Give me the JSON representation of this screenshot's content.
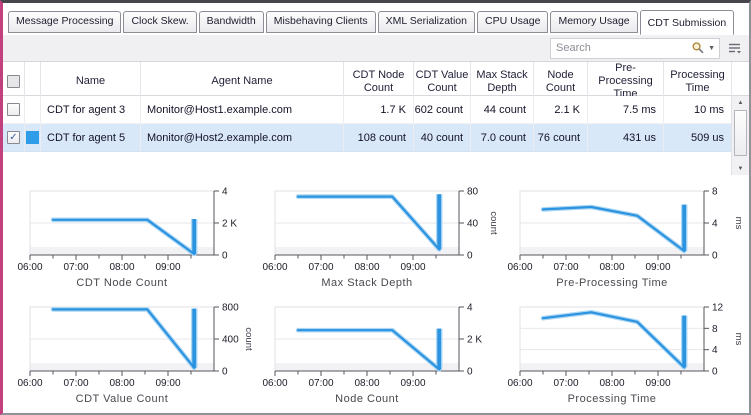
{
  "icons": {
    "scroll_up": "▲",
    "scroll_down": "▼",
    "caret_down": "▼",
    "check": "✓"
  },
  "colors": {
    "chart_line": "#2b93e0",
    "chart_line_halo": "#abd6f4",
    "selection_row": "#d9e8f9",
    "series_swatch": "#2e9ce8",
    "frame_left_accent": "#c2407e"
  },
  "tabs": [
    {
      "label": "Message Processing",
      "active": false
    },
    {
      "label": "Clock Skew.",
      "active": false
    },
    {
      "label": "Bandwidth",
      "active": false
    },
    {
      "label": "Misbehaving Clients",
      "active": false
    },
    {
      "label": "XML Serialization",
      "active": false
    },
    {
      "label": "CPU Usage",
      "active": false
    },
    {
      "label": "Memory Usage",
      "active": false
    },
    {
      "label": "CDT Submission",
      "active": true
    }
  ],
  "toolbar": {
    "search_placeholder": "Search"
  },
  "table": {
    "headers": [
      "Name",
      "Agent Name",
      "CDT Node Count",
      "CDT Value Count",
      "Max Stack Depth",
      "Node Count",
      "Pre-Processing Time",
      "Processing Time"
    ],
    "rows": [
      {
        "checked": false,
        "selected": false,
        "swatch": null,
        "name": "CDT for agent 3",
        "agent_name": "Monitor@Host1.example.com",
        "values": [
          "1.7 K",
          "602 count",
          "44 count",
          "2.1 K",
          "7.5 ms",
          "10 ms"
        ]
      },
      {
        "checked": true,
        "selected": true,
        "swatch": "#2e9ce8",
        "name": "CDT for agent 5",
        "agent_name": "Monitor@Host2.example.com",
        "values": [
          "108 count",
          "40 count",
          "7.0 count",
          "76 count",
          "431 us",
          "509 us"
        ]
      }
    ]
  },
  "chart_data": {
    "type": "line",
    "layout": "2 rows x 3 columns",
    "legend": "none",
    "grid": "horizontal gridlines at y ticks, light bottom band",
    "x_axis": {
      "tick_labels": [
        "06:00",
        "07:00",
        "08:00",
        "09:00"
      ],
      "tick_hours": [
        6,
        7,
        8,
        9
      ],
      "range_hours": [
        6,
        10
      ],
      "minor_step": 0.5
    },
    "charts": [
      {
        "title": "CDT Node Count",
        "unit": "",
        "value_scale": "thousands",
        "ylim": [
          0,
          4
        ],
        "yticks": [
          {
            "v": 0,
            "t": "0"
          },
          {
            "v": 2,
            "t": "2 K"
          },
          {
            "v": 4,
            "t": "4"
          }
        ],
        "points": [
          [
            6.5,
            2.2
          ],
          [
            7.5,
            2.2
          ],
          [
            8.55,
            2.2
          ],
          [
            9.57,
            0.06
          ]
        ],
        "spike": 2.25
      },
      {
        "title": "Max Stack Depth",
        "unit": "count",
        "ylim": [
          0,
          80
        ],
        "yticks": [
          {
            "v": 0,
            "t": "0"
          },
          {
            "v": 40,
            "t": "40"
          },
          {
            "v": 80,
            "t": "80"
          }
        ],
        "points": [
          [
            6.5,
            73
          ],
          [
            7.5,
            73
          ],
          [
            8.55,
            73
          ],
          [
            9.57,
            7
          ]
        ],
        "spike": 76
      },
      {
        "title": "Pre-Processing Time",
        "unit": "ms",
        "ylim": [
          0,
          8
        ],
        "yticks": [
          {
            "v": 0,
            "t": "0"
          },
          {
            "v": 4,
            "t": "4"
          },
          {
            "v": 8,
            "t": "8"
          }
        ],
        "points": [
          [
            6.5,
            5.7
          ],
          [
            7.55,
            6.0
          ],
          [
            8.55,
            4.9
          ],
          [
            9.57,
            0.5
          ]
        ],
        "spike": 6.3
      },
      {
        "title": "CDT Value Count",
        "unit": "count",
        "ylim": [
          0,
          800
        ],
        "yticks": [
          {
            "v": 0,
            "t": "0"
          },
          {
            "v": 400,
            "t": "400"
          },
          {
            "v": 800,
            "t": "800"
          }
        ],
        "points": [
          [
            6.5,
            770
          ],
          [
            7.5,
            770
          ],
          [
            8.55,
            770
          ],
          [
            9.57,
            40
          ]
        ],
        "spike": 780
      },
      {
        "title": "Node Count",
        "unit": "",
        "value_scale": "thousands",
        "ylim": [
          0,
          4
        ],
        "yticks": [
          {
            "v": 0,
            "t": "0"
          },
          {
            "v": 2,
            "t": "2 K"
          },
          {
            "v": 4,
            "t": "4"
          }
        ],
        "points": [
          [
            6.5,
            2.55
          ],
          [
            7.5,
            2.55
          ],
          [
            8.55,
            2.55
          ],
          [
            9.57,
            0.1
          ]
        ],
        "spike": 2.65
      },
      {
        "title": "Processing Time",
        "unit": "ms",
        "ylim": [
          0,
          12
        ],
        "yticks": [
          {
            "v": 0,
            "t": "0"
          },
          {
            "v": 4,
            "t": "4"
          },
          {
            "v": 8,
            "t": "8"
          },
          {
            "v": 12,
            "t": "12"
          }
        ],
        "points": [
          [
            6.5,
            9.9
          ],
          [
            7.55,
            11.0
          ],
          [
            8.55,
            9.2
          ],
          [
            9.57,
            0.7
          ]
        ],
        "spike": 10.4
      }
    ]
  }
}
